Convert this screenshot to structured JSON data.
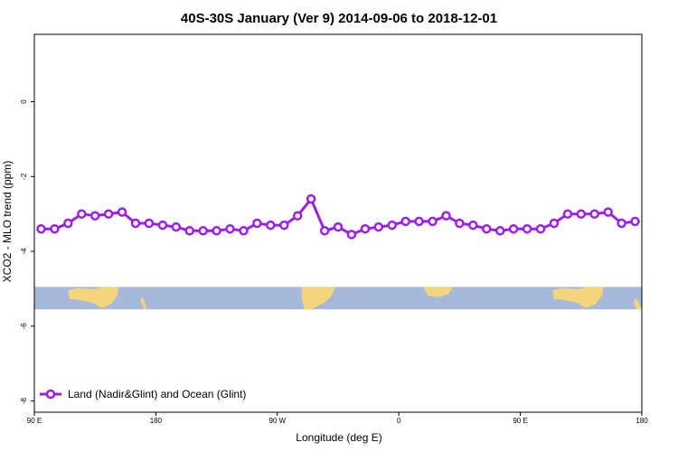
{
  "chart_data": {
    "type": "line",
    "title": "40S-30S January (Ver 9)   2014-09-06 to 2018-12-01",
    "xlabel": "Longitude (deg E)",
    "ylabel": "XCO2 - MLO trend (ppm)",
    "xlim": [
      90,
      540
    ],
    "ylim": [
      -8.3,
      1.8
    ],
    "x_ticks": [
      {
        "value": 90,
        "label": "90 E"
      },
      {
        "value": 180,
        "label": "180"
      },
      {
        "value": 270,
        "label": "90 W"
      },
      {
        "value": 360,
        "label": "0"
      },
      {
        "value": 450,
        "label": "90 E"
      },
      {
        "value": 540,
        "label": "180"
      }
    ],
    "y_ticks": [
      {
        "value": 0,
        "label": "0"
      },
      {
        "value": -2,
        "label": "-2"
      },
      {
        "value": -4,
        "label": "-4"
      },
      {
        "value": -6,
        "label": "-6"
      },
      {
        "value": -8,
        "label": "-8"
      }
    ],
    "legend": {
      "position": "bottom-left",
      "entries": [
        "Land (Nadir&Glint) and Ocean (Glint)"
      ]
    },
    "series": [
      {
        "name": "Land (Nadir&Glint) and Ocean (Glint)",
        "color": "#9b1fe8",
        "x": [
          95,
          105,
          115,
          125,
          135,
          145,
          155,
          165,
          175,
          185,
          195,
          205,
          215,
          225,
          235,
          245,
          255,
          265,
          275,
          285,
          295,
          305,
          315,
          325,
          335,
          345,
          355,
          365,
          375,
          385,
          395,
          405,
          415,
          425,
          435,
          445,
          455,
          465,
          475,
          485,
          495,
          505,
          515,
          525,
          535
        ],
        "values": [
          -3.4,
          -3.4,
          -3.25,
          -3.0,
          -3.05,
          -3.0,
          -2.95,
          -3.25,
          -3.25,
          -3.3,
          -3.35,
          -3.45,
          -3.45,
          -3.45,
          -3.4,
          -3.45,
          -3.25,
          -3.3,
          -3.3,
          -3.05,
          -2.6,
          -3.45,
          -3.35,
          -3.55,
          -3.4,
          -3.35,
          -3.3,
          -3.2,
          -3.2,
          -3.2,
          -3.05,
          -3.25,
          -3.3,
          -3.4,
          -3.45,
          -3.4,
          -3.4,
          -3.4,
          -3.25,
          -3.0,
          -3.0,
          -3.0,
          -2.95,
          -3.25,
          -3.2
        ]
      }
    ],
    "map_strip": {
      "ocean_color": "#a7b9db",
      "land_color": "#f5d57b",
      "y_range": [
        -5.55,
        -4.95
      ]
    }
  }
}
